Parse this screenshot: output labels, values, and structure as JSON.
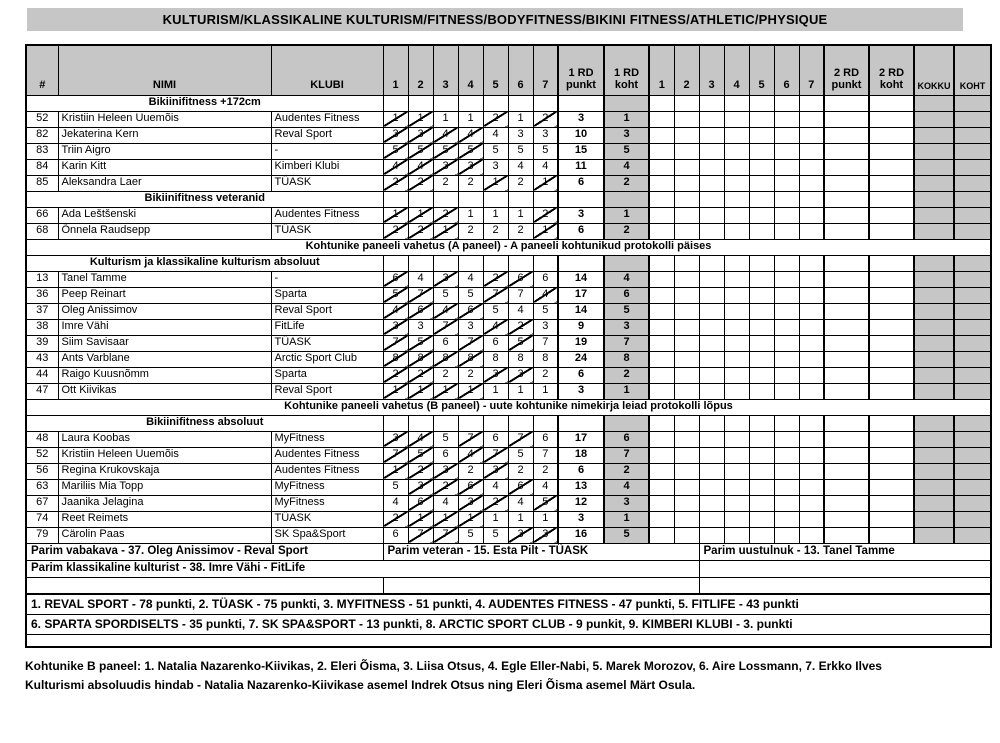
{
  "title": "KULTURISM/KLASSIKALINE KULTURISM/FITNESS/BODYFITNESS/BIKINI FITNESS/ATHLETIC/PHYSIQUE",
  "colors": {
    "header_gray": "#c6c6c6",
    "shaded_column_gray": "#c6c6c6",
    "border_black": "#000000",
    "page_background": "#ffffff"
  },
  "table": {
    "header": {
      "num": "#",
      "name": "NIMI",
      "club": "KLUBI",
      "judges_round1": [
        "1",
        "2",
        "3",
        "4",
        "5",
        "6",
        "7"
      ],
      "rd1_punkt": "1 RD\npunkt",
      "rd1_koht": "1 RD\nkoht",
      "judges_round2": [
        "1",
        "2",
        "3",
        "4",
        "5",
        "6",
        "7"
      ],
      "rd2_punkt": "2 RD\npunkt",
      "rd2_koht": "2 RD\nkoht",
      "kokku": "KOKKU",
      "koht": "KOHT"
    },
    "rows": [
      {
        "type": "section",
        "label": "Bikiinifitness +172cm"
      },
      {
        "type": "athlete",
        "num": "52",
        "name": "Kristiin Heleen Uuemõis",
        "club": "Audentes Fitness",
        "scores": [
          "1",
          "1",
          "1",
          "1",
          "2",
          "1",
          "2"
        ],
        "struck": [
          0,
          1,
          4,
          6
        ],
        "rd1_punkt": "3",
        "rd1_koht": "1"
      },
      {
        "type": "athlete",
        "num": "82",
        "name": "Jekaterina Kern",
        "club": "Reval Sport",
        "scores": [
          "3",
          "3",
          "4",
          "4",
          "4",
          "3",
          "3"
        ],
        "struck": [
          0,
          1,
          2,
          3
        ],
        "rd1_punkt": "10",
        "rd1_koht": "3"
      },
      {
        "type": "athlete",
        "num": "83",
        "name": "Triin Aigro",
        "club": "-",
        "scores": [
          "5",
          "5",
          "5",
          "5",
          "5",
          "5",
          "5"
        ],
        "struck": [
          0,
          1,
          2,
          3
        ],
        "rd1_punkt": "15",
        "rd1_koht": "5"
      },
      {
        "type": "athlete",
        "num": "84",
        "name": "Karin Kitt",
        "club": "Kimberi Klubi",
        "scores": [
          "4",
          "4",
          "3",
          "3",
          "3",
          "4",
          "4"
        ],
        "struck": [
          0,
          1,
          2,
          3
        ],
        "rd1_punkt": "11",
        "rd1_koht": "4"
      },
      {
        "type": "athlete",
        "num": "85",
        "name": "Aleksandra Laer",
        "club": "TÜASK",
        "scores": [
          "2",
          "2",
          "2",
          "2",
          "1",
          "2",
          "1"
        ],
        "struck": [
          0,
          1,
          4,
          6
        ],
        "rd1_punkt": "6",
        "rd1_koht": "2"
      },
      {
        "type": "section",
        "label": "Bikiinifitness veteranid"
      },
      {
        "type": "athlete",
        "num": "66",
        "name": "Ada Leštšenski",
        "club": "Audentes Fitness",
        "scores": [
          "1",
          "1",
          "2",
          "1",
          "1",
          "1",
          "2"
        ],
        "struck": [
          0,
          1,
          2,
          6
        ],
        "rd1_punkt": "3",
        "rd1_koht": "1"
      },
      {
        "type": "athlete",
        "num": "68",
        "name": "Õnnela Raudsepp",
        "club": "TÜASK",
        "scores": [
          "2",
          "2",
          "1",
          "2",
          "2",
          "2",
          "1"
        ],
        "struck": [
          0,
          1,
          2,
          6
        ],
        "rd1_punkt": "6",
        "rd1_koht": "2"
      },
      {
        "type": "message",
        "label": "Kohtunike paneeli vahetus (A paneel) - A paneeli kohtunikud protokolli päises"
      },
      {
        "type": "section",
        "label": "Kulturism ja klassikaline kulturism absoluut"
      },
      {
        "type": "athlete",
        "num": "13",
        "name": "Tanel Tamme",
        "club": "-",
        "scores": [
          "6",
          "4",
          "3",
          "4",
          "2",
          "6",
          "6"
        ],
        "struck": [
          0,
          2,
          4,
          5
        ],
        "rd1_punkt": "14",
        "rd1_koht": "4"
      },
      {
        "type": "athlete",
        "num": "36",
        "name": "Peep Reinart",
        "club": "Sparta",
        "scores": [
          "5",
          "7",
          "5",
          "5",
          "7",
          "7",
          "4"
        ],
        "struck": [
          0,
          1,
          4,
          6
        ],
        "rd1_punkt": "17",
        "rd1_koht": "6"
      },
      {
        "type": "athlete",
        "num": "37",
        "name": "Oleg Anissimov",
        "club": "Reval Sport",
        "scores": [
          "4",
          "6",
          "4",
          "6",
          "5",
          "4",
          "5"
        ],
        "struck": [
          0,
          1,
          2,
          3
        ],
        "rd1_punkt": "14",
        "rd1_koht": "5"
      },
      {
        "type": "athlete",
        "num": "38",
        "name": "Imre Vähi",
        "club": "FitLife",
        "scores": [
          "3",
          "3",
          "7",
          "3",
          "4",
          "2",
          "3"
        ],
        "struck": [
          0,
          2,
          4,
          5
        ],
        "rd1_punkt": "9",
        "rd1_koht": "3"
      },
      {
        "type": "athlete",
        "num": "39",
        "name": "Siim Savisaar",
        "club": "TÜASK",
        "scores": [
          "7",
          "5",
          "6",
          "7",
          "6",
          "5",
          "7"
        ],
        "struck": [
          0,
          1,
          3,
          5
        ],
        "rd1_punkt": "19",
        "rd1_koht": "7"
      },
      {
        "type": "athlete",
        "num": "43",
        "name": "Ants Varblane",
        "club": "Arctic Sport Club",
        "scores": [
          "8",
          "8",
          "8",
          "8",
          "8",
          "8",
          "8"
        ],
        "struck": [
          0,
          1,
          2,
          3
        ],
        "rd1_punkt": "24",
        "rd1_koht": "8"
      },
      {
        "type": "athlete",
        "num": "44",
        "name": "Raigo Kuusnõmm",
        "club": "Sparta",
        "scores": [
          "2",
          "2",
          "2",
          "2",
          "3",
          "3",
          "2"
        ],
        "struck": [
          0,
          1,
          4,
          5
        ],
        "rd1_punkt": "6",
        "rd1_koht": "2"
      },
      {
        "type": "athlete",
        "num": "47",
        "name": "Ott Kiivikas",
        "club": "Reval Sport",
        "scores": [
          "1",
          "1",
          "1",
          "1",
          "1",
          "1",
          "1"
        ],
        "struck": [
          0,
          1,
          2,
          3
        ],
        "rd1_punkt": "3",
        "rd1_koht": "1"
      },
      {
        "type": "message",
        "label": "Kohtunike paneeli vahetus (B paneel) - uute kohtunike nimekirja leiad protokolli lõpus"
      },
      {
        "type": "section",
        "label": "Bikiinifitness absoluut"
      },
      {
        "type": "athlete",
        "num": "48",
        "name": "Laura Koobas",
        "club": "MyFitness",
        "scores": [
          "3",
          "4",
          "5",
          "7",
          "6",
          "7",
          "6"
        ],
        "struck": [
          0,
          1,
          3,
          5
        ],
        "rd1_punkt": "17",
        "rd1_koht": "6"
      },
      {
        "type": "athlete",
        "num": "52",
        "name": "Kristiin Heleen Uuemõis",
        "club": "Audentes Fitness",
        "scores": [
          "7",
          "5",
          "6",
          "4",
          "7",
          "5",
          "7"
        ],
        "struck": [
          0,
          1,
          3,
          4
        ],
        "rd1_punkt": "18",
        "rd1_koht": "7"
      },
      {
        "type": "athlete",
        "num": "56",
        "name": "Regina Krukovskaja",
        "club": "Audentes Fitness",
        "scores": [
          "1",
          "2",
          "3",
          "2",
          "3",
          "2",
          "2"
        ],
        "struck": [
          0,
          1,
          2,
          4
        ],
        "rd1_punkt": "6",
        "rd1_koht": "2"
      },
      {
        "type": "athlete",
        "num": "63",
        "name": "Mariliis Mia Topp",
        "club": "MyFitness",
        "scores": [
          "5",
          "3",
          "2",
          "6",
          "4",
          "6",
          "4"
        ],
        "struck": [
          1,
          2,
          3,
          5
        ],
        "rd1_punkt": "13",
        "rd1_koht": "4"
      },
      {
        "type": "athlete",
        "num": "67",
        "name": "Jaanika Jelagina",
        "club": "MyFitness",
        "scores": [
          "4",
          "6",
          "4",
          "3",
          "2",
          "4",
          "5"
        ],
        "struck": [
          1,
          3,
          4,
          6
        ],
        "rd1_punkt": "12",
        "rd1_koht": "3"
      },
      {
        "type": "athlete",
        "num": "74",
        "name": "Reet Reimets",
        "club": "TÜASK",
        "scores": [
          "2",
          "1",
          "1",
          "1",
          "1",
          "1",
          "1"
        ],
        "struck": [
          0,
          1,
          2,
          3
        ],
        "rd1_punkt": "3",
        "rd1_koht": "1"
      },
      {
        "type": "athlete",
        "num": "79",
        "name": "Cärolin Paas",
        "club": "SK Spa&Sport",
        "scores": [
          "6",
          "7",
          "7",
          "5",
          "5",
          "3",
          "3"
        ],
        "struck": [
          1,
          2,
          5,
          6
        ],
        "rd1_punkt": "16",
        "rd1_koht": "5"
      }
    ],
    "best_awards_rows": [
      {
        "cells": [
          {
            "text": "Parim vabakava - 37. Oleg Anissimov - Reval Sport",
            "colspan": 3
          },
          {
            "text": "Parim veteran - 15. Esta Pilt - TÜASK",
            "colspan": 11
          },
          {
            "text": "Parim uustulnuk - 13. Tanel Tamme",
            "colspan": 9
          }
        ]
      },
      {
        "cells": [
          {
            "text": "Parim klassikaline kulturist - 38. Imre Vähi - FitLife",
            "colspan": 14
          },
          {
            "text": "",
            "colspan": 9
          }
        ]
      },
      {
        "cells": [
          {
            "text": "",
            "colspan": 3
          },
          {
            "text": "",
            "colspan": 11
          },
          {
            "text": "",
            "colspan": 9
          }
        ]
      }
    ],
    "club_standings": [
      "1. REVAL SPORT - 78 punkti, 2. TÜASK - 75 punkti, 3. MYFITNESS - 51 punkti, 4. AUDENTES FITNESS - 47 punkti, 5. FITLIFE - 43 punkti",
      "6. SPARTA SPORDISELTS - 35 punkti, 7. SK SPA&SPORT - 13 punkti, 8. ARCTIC SPORT CLUB - 9 punkit, 9. KIMBERI KLUBI - 3. punkti"
    ]
  },
  "footer": {
    "line1": "Kohtunike B paneel: 1. Natalia Nazarenko-Kiivikas, 2. Eleri Õisma, 3. Liisa Otsus, 4. Egle Eller-Nabi, 5. Marek Morozov, 6. Aire Lossmann, 7. Erkko Ilves",
    "line2": "Kulturismi absoluudis hindab - Natalia Nazarenko-Kiivikase asemel Indrek Otsus ning Eleri Õisma asemel Märt Osula."
  }
}
